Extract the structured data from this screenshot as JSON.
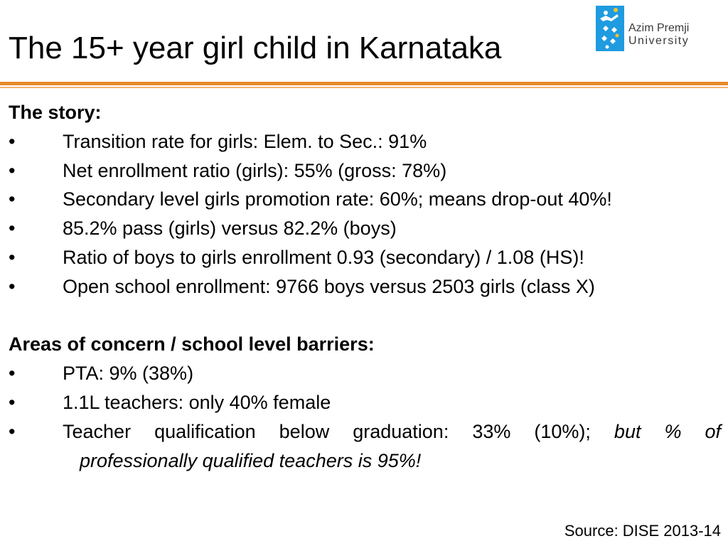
{
  "slide": {
    "title": "The 15+ year girl child in Karnataka",
    "logo": {
      "line1": "Azim Premji",
      "line2": "University"
    },
    "section1": {
      "heading": "The story:",
      "bullets": [
        "Transition rate for girls: Elem. to Sec.: 91%",
        "Net enrollment ratio (girls): 55% (gross: 78%)",
        "Secondary level girls promotion rate: 60%; means drop-out 40%!",
        "85.2% pass (girls) versus 82.2% (boys)",
        "Ratio of boys to girls enrollment 0.93 (secondary) / 1.08 (HS)!",
        "Open school enrollment: 9766 boys versus 2503 girls (class X)"
      ]
    },
    "section2": {
      "heading": "Areas of concern / school level barriers:",
      "bullets": [
        "PTA: 9% (38%)",
        "1.1L teachers: only 40% female"
      ],
      "bullet3_main": "Teacher qualification below graduation: 33% (10%);",
      "bullet3_italic": "but % of",
      "bullet3_continuation": "professionally qualified teachers is 95%!"
    },
    "bullet_symbol": "•",
    "source": "Source: DISE 2013-14",
    "colors": {
      "accent_orange": "#e88a2c",
      "logo_blue": "#1f9be0"
    }
  }
}
